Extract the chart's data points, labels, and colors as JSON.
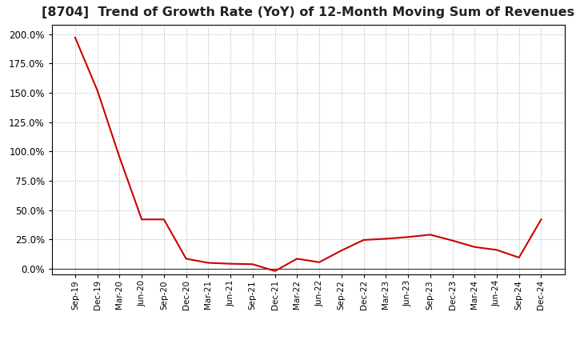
{
  "title": "[8704]  Trend of Growth Rate (YoY) of 12-Month Moving Sum of Revenues",
  "title_fontsize": 11.5,
  "line_color": "#cc0000",
  "background_color": "#ffffff",
  "plot_bg_color": "#ffffff",
  "grid_color": "#aaaaaa",
  "yticks": [
    0.0,
    0.25,
    0.5,
    0.75,
    1.0,
    1.25,
    1.5,
    1.75,
    2.0
  ],
  "ylim": [
    -0.05,
    2.08
  ],
  "x_labels": [
    "Sep-19",
    "Dec-19",
    "Mar-20",
    "Jun-20",
    "Sep-20",
    "Dec-20",
    "Mar-21",
    "Jun-21",
    "Sep-21",
    "Dec-21",
    "Mar-22",
    "Jun-22",
    "Sep-22",
    "Dec-22",
    "Mar-23",
    "Jun-23",
    "Sep-23",
    "Dec-23",
    "Mar-24",
    "Jun-24",
    "Sep-24",
    "Dec-24"
  ],
  "values": [
    1.97,
    1.52,
    0.95,
    0.42,
    0.42,
    0.085,
    0.05,
    0.042,
    0.038,
    -0.02,
    0.085,
    0.055,
    0.155,
    0.245,
    0.255,
    0.27,
    0.29,
    0.24,
    0.185,
    0.16,
    0.095,
    0.42
  ]
}
